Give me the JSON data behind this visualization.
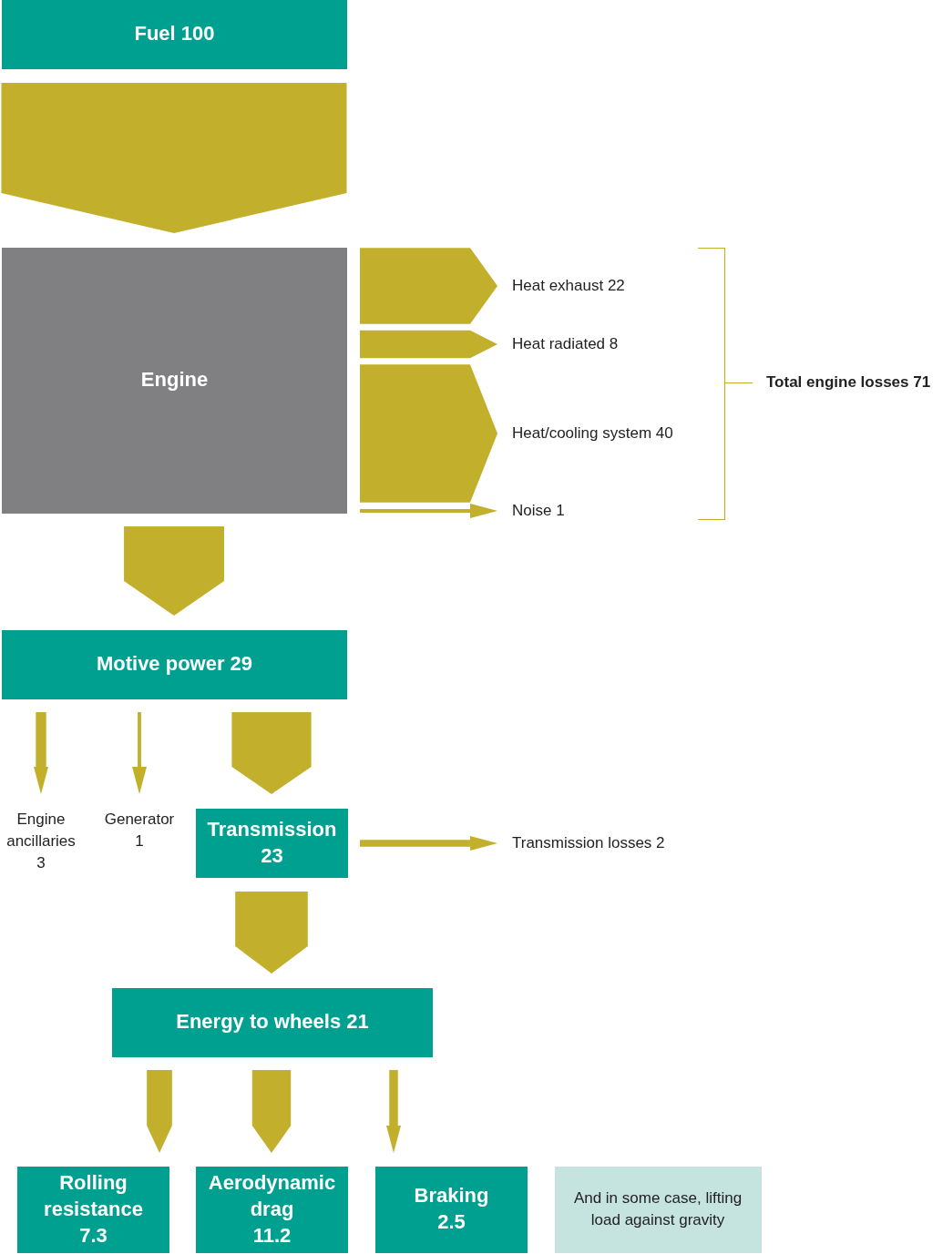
{
  "chart_data": {
    "type": "other",
    "categories": [
      "Fuel",
      "Engine",
      "Heat exhaust",
      "Heat radiated",
      "Heat/cooling system",
      "Noise",
      "Motive power",
      "Engine ancillaries",
      "Generator",
      "Transmission",
      "Transmission losses",
      "Energy to wheels",
      "Rolling resistance",
      "Aerodynamic drag",
      "Braking"
    ],
    "values": [
      100,
      null,
      22,
      8,
      40,
      1,
      29,
      3,
      1,
      23,
      2,
      21,
      7.3,
      11.2,
      2.5
    ],
    "colors": [
      "#00a091",
      "#808083",
      "#c2af2b",
      "#c2af2b",
      "#c2af2b",
      "#c2af2b",
      "#00a091",
      "#c2af2b",
      "#c2af2b",
      "#00a091",
      "#c2af2b",
      "#00a091",
      "#00a091",
      "#00a091",
      "#00a091"
    ],
    "data_labels": true,
    "annotations": [
      "Total engine losses 71",
      "And in some case, lifting load against gravity"
    ]
  }
}
